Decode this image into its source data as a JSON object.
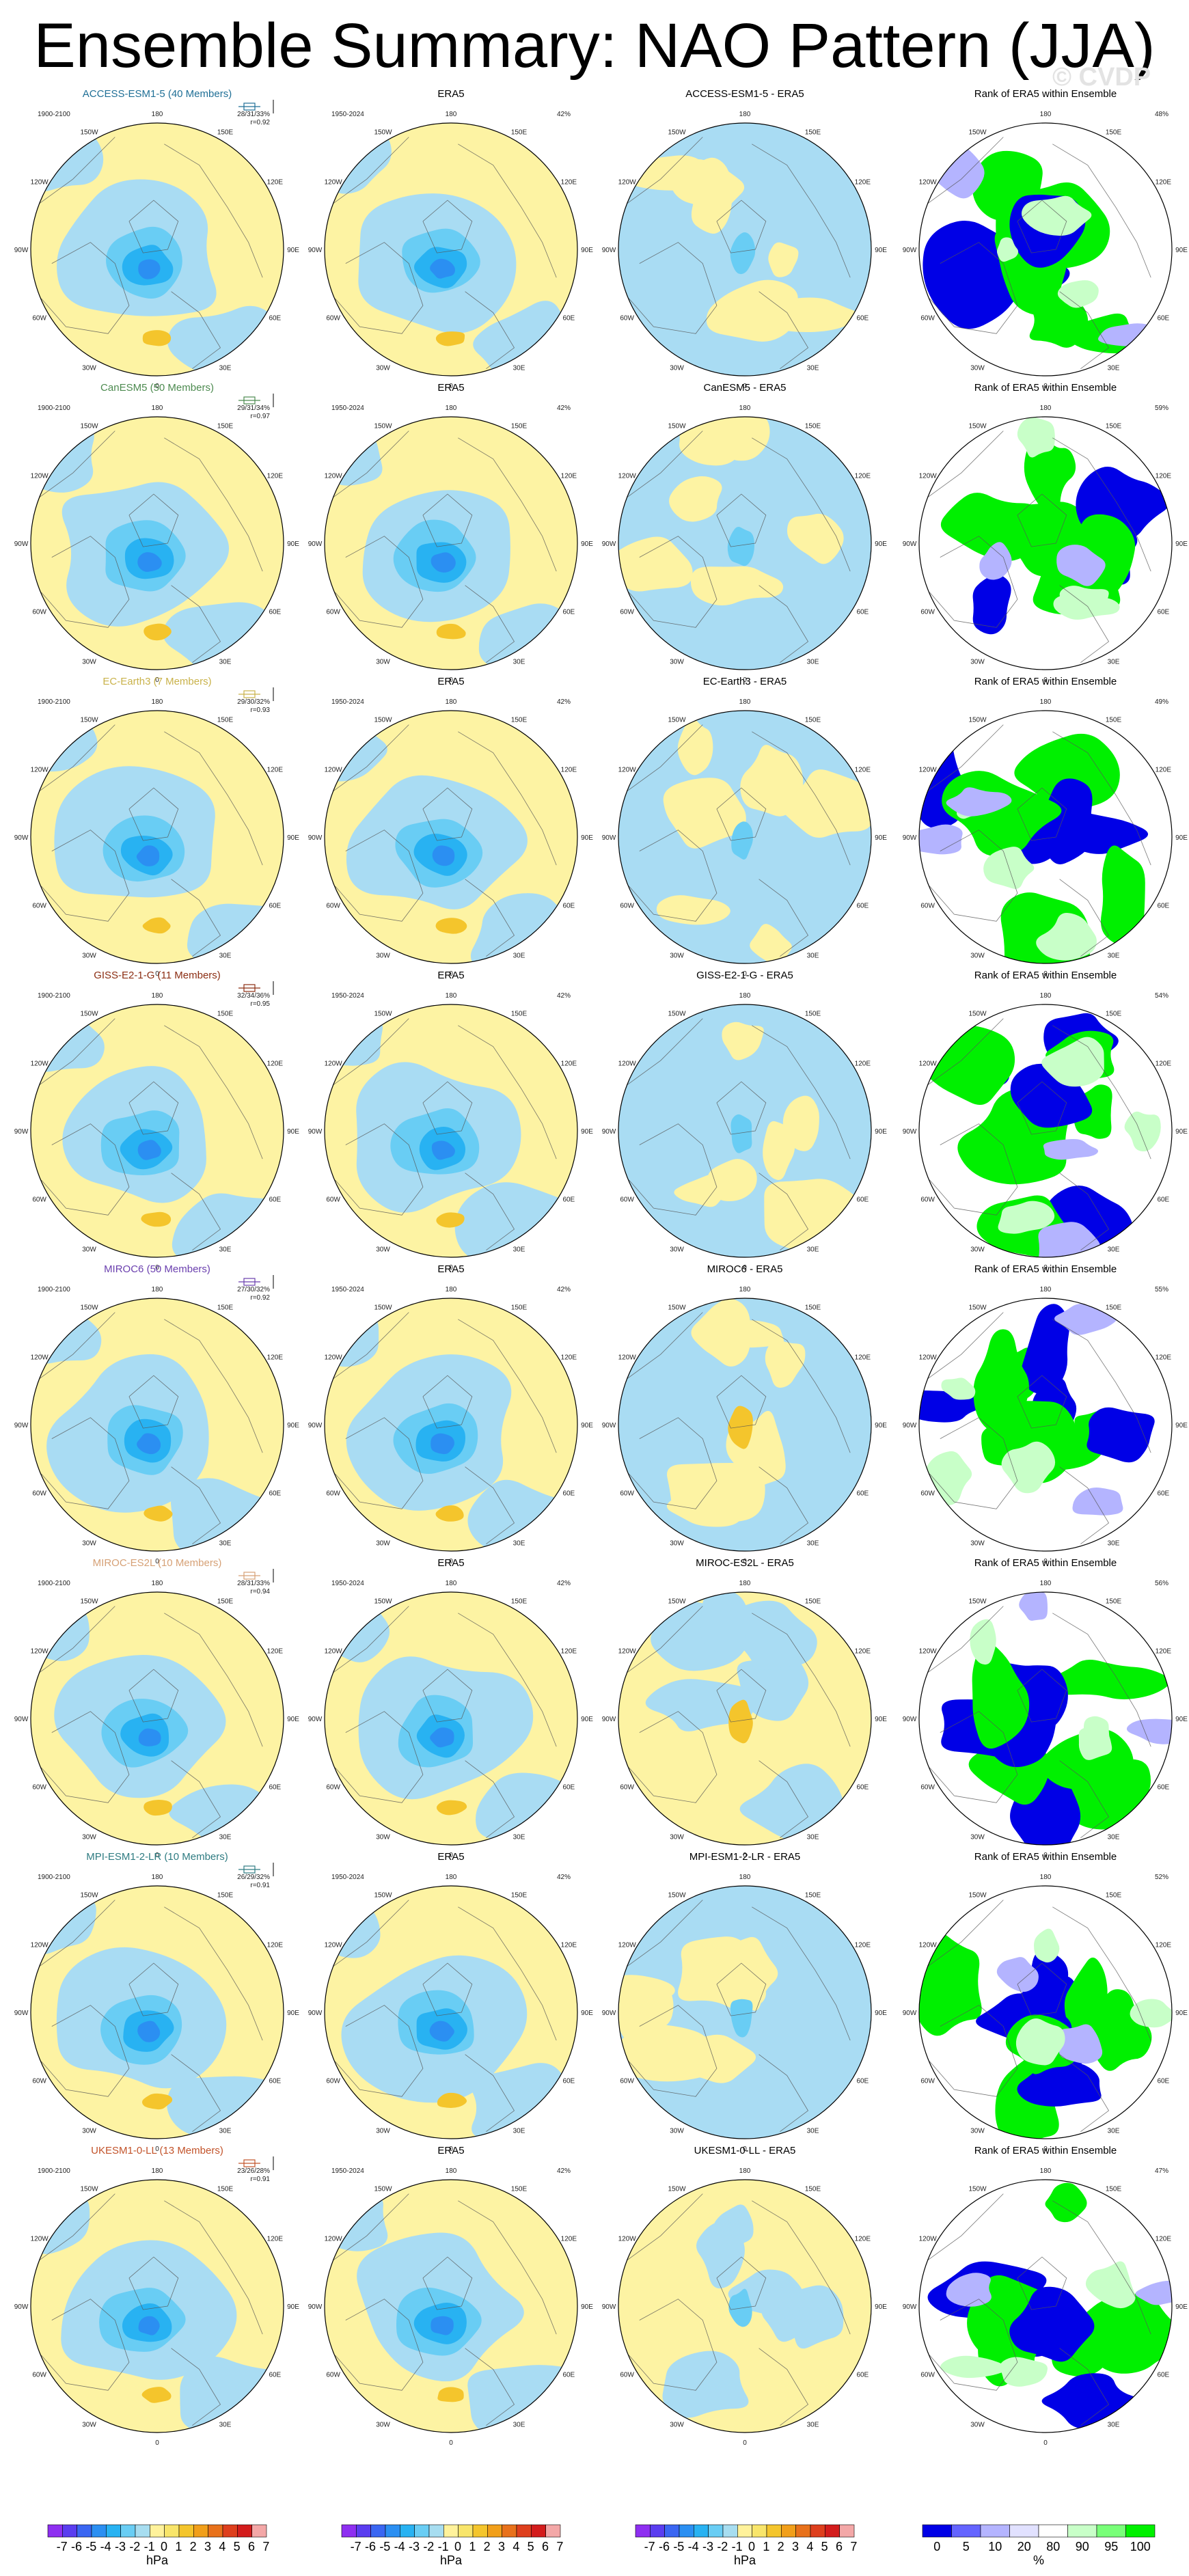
{
  "title": "Ensemble Summary: NAO Pattern (JJA)",
  "watermark": "© CVDP",
  "chart_data": {
    "type": "heatmap",
    "projection": "north polar stereographic",
    "lon_labels": [
      "180",
      "150E",
      "120E",
      "90E",
      "60E",
      "30E",
      "0",
      "30W",
      "60W",
      "90W",
      "120W",
      "150W"
    ],
    "obs_period": "1950-2024",
    "model_period": "1900-2100",
    "obs_title": "ERA5",
    "obs_pct": "42%",
    "rank_title": "Rank of ERA5 within Ensemble",
    "rows": [
      {
        "model": "ACCESS-ESM1-5 (40 Members)",
        "diff_title": "ACCESS-ESM1-5 - ERA5",
        "stats": "28/31/33%",
        "r": "r=0.92",
        "rank_pct": "48%",
        "color": "#1f6f96"
      },
      {
        "model": "CanESM5 (50 Members)",
        "diff_title": "CanESM5 - ERA5",
        "stats": "29/31/34%",
        "r": "r=0.97",
        "rank_pct": "59%",
        "color": "#4c8a4f"
      },
      {
        "model": "EC-Earth3 (7 Members)",
        "diff_title": "EC-Earth3 - ERA5",
        "stats": "29/30/32%",
        "r": "r=0.93",
        "rank_pct": "49%",
        "color": "#c9b24a"
      },
      {
        "model": "GISS-E2-1-G (11 Members)",
        "diff_title": "GISS-E2-1-G - ERA5",
        "stats": "32/34/36%",
        "r": "r=0.95",
        "rank_pct": "54%",
        "color": "#8b2d12"
      },
      {
        "model": "MIROC6 (50 Members)",
        "diff_title": "MIROC6 - ERA5",
        "stats": "27/30/32%",
        "r": "r=0.92",
        "rank_pct": "55%",
        "color": "#6a3fae"
      },
      {
        "model": "MIROC-ES2L (10 Members)",
        "diff_title": "MIROC-ES2L - ERA5",
        "stats": "28/31/33%",
        "r": "r=0.94",
        "rank_pct": "56%",
        "color": "#d6a176"
      },
      {
        "model": "MPI-ESM1-2-LR (10 Members)",
        "diff_title": "MPI-ESM1-2-LR - ERA5",
        "stats": "26/29/32%",
        "r": "r=0.91",
        "rank_pct": "52%",
        "color": "#2f7c82"
      },
      {
        "model": "UKESM1-0-LL (13 Members)",
        "diff_title": "UKESM1-0-LL - ERA5",
        "stats": "23/26/28%",
        "r": "r=0.91",
        "rank_pct": "47%",
        "color": "#c2532a"
      }
    ],
    "colorbar_hpa": {
      "ticks": [
        "-7",
        "-6",
        "-5",
        "-4",
        "-3",
        "-2",
        "-1",
        "0",
        "1",
        "2",
        "3",
        "4",
        "5",
        "6",
        "7"
      ],
      "unit": "hPa",
      "colors": [
        "#8e2ff1",
        "#5a3df0",
        "#3a66f2",
        "#2b8ff2",
        "#28b2f2",
        "#69cdf4",
        "#a7ddf0",
        "#fff29b",
        "#f8e56a",
        "#f4c52c",
        "#f19f1a",
        "#e8711b",
        "#de3f1d",
        "#d31c1c",
        "#f3a7a7"
      ]
    },
    "colorbar_rank": {
      "ticks": [
        "0",
        "5",
        "10",
        "20",
        "80",
        "90",
        "95",
        "100"
      ],
      "unit": "%",
      "colors": [
        "#0000e6",
        "#6464ff",
        "#b4b4ff",
        "#e1e1ff",
        "#ffffff",
        "#c8ffc8",
        "#78ff78",
        "#00f000"
      ]
    },
    "map_colors": {
      "negative": "#a9dcf3",
      "positive": "#fdf3a3",
      "rank_low": "#0000e6",
      "rank_high": "#00f000"
    }
  }
}
